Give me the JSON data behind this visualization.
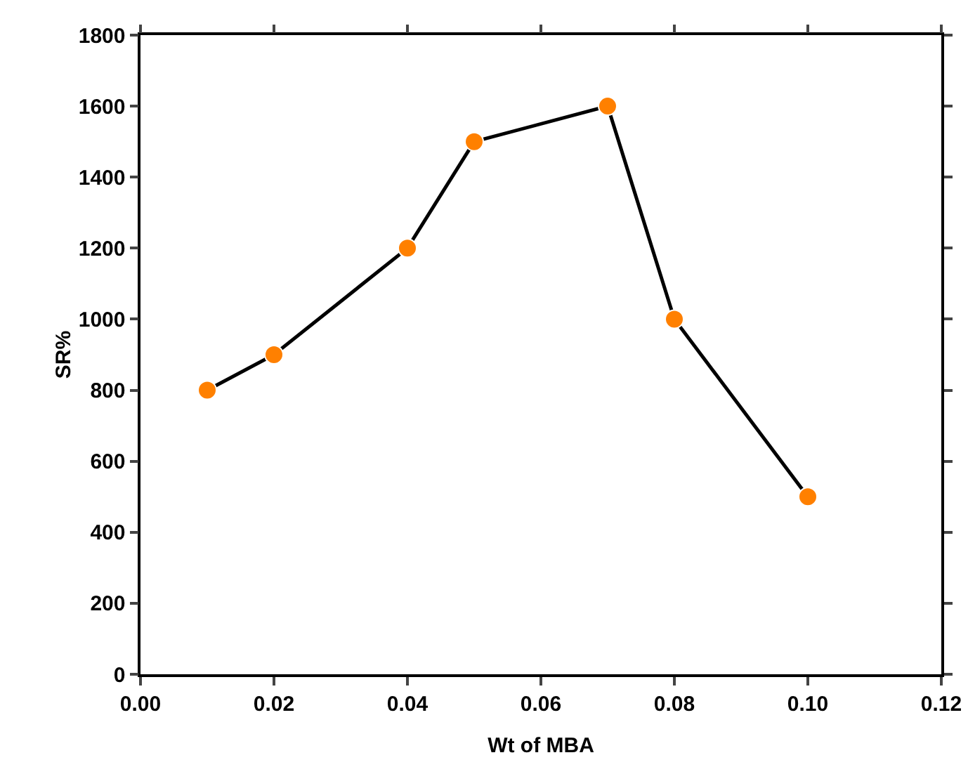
{
  "chart_data": {
    "type": "line",
    "xlabel": "Wt of MBA",
    "ylabel": "SR%",
    "x": [
      0.01,
      0.02,
      0.04,
      0.05,
      0.07,
      0.08,
      0.1
    ],
    "series": [
      {
        "color": "#ff8000",
        "values": [
          800,
          900,
          1200,
          1500,
          1600,
          1000,
          500
        ]
      }
    ],
    "xlim": [
      0,
      0.12
    ],
    "xticks": [
      {
        "value": 0,
        "label": "0.00"
      },
      {
        "value": 0.02,
        "label": "0.02"
      },
      {
        "value": 0.04,
        "label": "0.04"
      },
      {
        "value": 0.06,
        "label": "0.06"
      },
      {
        "value": 0.08,
        "label": "0.08"
      },
      {
        "value": 0.1,
        "label": "0.10"
      },
      {
        "value": 0.12,
        "label": "0.12"
      }
    ],
    "ylim": [
      0,
      1800
    ],
    "yticks": [
      0,
      200,
      400,
      600,
      800,
      1000,
      1200,
      1400,
      1600,
      1800
    ],
    "grid": false,
    "marker": "circle",
    "line_style": "solid"
  }
}
